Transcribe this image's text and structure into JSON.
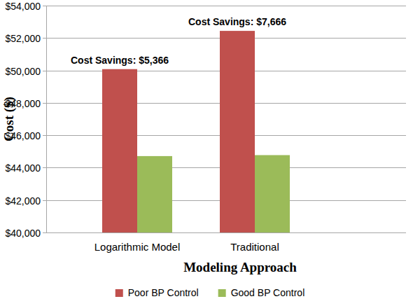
{
  "chart_data": {
    "type": "bar",
    "categories": [
      "Logarithmic Model",
      "Traditional"
    ],
    "series": [
      {
        "name": "Poor BP Control",
        "color": "#c0504d",
        "values": [
          50080,
          52440
        ]
      },
      {
        "name": "Good BP Control",
        "color": "#9bbb59",
        "values": [
          44714,
          44774
        ]
      }
    ],
    "annotations": [
      "Cost Savings: $5,366",
      "Cost Savings: $7,666"
    ],
    "x_label": "Modeling Approach",
    "y_label": "Cost ($)",
    "ylim": [
      40000,
      54000
    ],
    "yticks": [
      {
        "value": 40000,
        "label": "$40,000"
      },
      {
        "value": 42000,
        "label": "$42,000"
      },
      {
        "value": 44000,
        "label": "$44,000"
      },
      {
        "value": 46000,
        "label": "$46,000"
      },
      {
        "value": 48000,
        "label": "$48,000"
      },
      {
        "value": 50000,
        "label": "$50,000"
      },
      {
        "value": 52000,
        "label": "$52,000"
      },
      {
        "value": 54000,
        "label": "$54,000"
      }
    ],
    "grid": true,
    "legend": "bottom"
  }
}
